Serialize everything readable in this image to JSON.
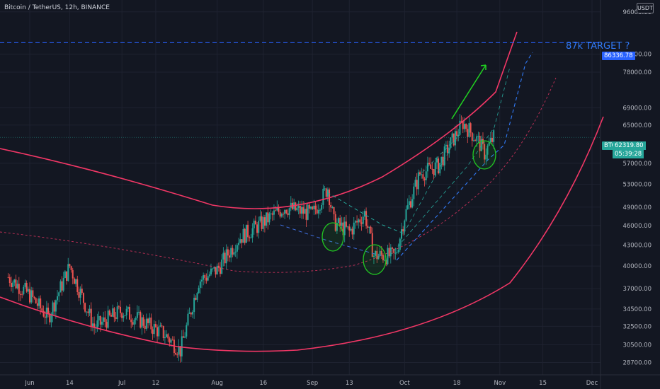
{
  "header": {
    "title": "Bitcoin / TetherUS, 12h, BINANCE",
    "currency_badge": "USDT"
  },
  "annotations": {
    "target_text": "87k TARGET ?",
    "target_price_label": "86336.78",
    "symbol_badge": "BTCUSDT",
    "current_price_label": "62319.80",
    "countdown_label": "05:39:28"
  },
  "colors": {
    "background": "#131722",
    "up_candle": "#26a69a",
    "down_candle": "#ef5350",
    "curve": "#f23766",
    "target_line": "#2962ff",
    "arrow": "#21d321",
    "circles": "#22c822"
  },
  "chart_data": {
    "type": "candlestick",
    "title": "Bitcoin / TetherUS, 12h, BINANCE",
    "y_scale": "log",
    "ylim": [
      27500,
      100000
    ],
    "y_ticks": [
      {
        "value": 96000,
        "label": "96000.00"
      },
      {
        "value": 83000,
        "label": "83000.00"
      },
      {
        "value": 78000,
        "label": "78000.00"
      },
      {
        "value": 69000,
        "label": "69000.00"
      },
      {
        "value": 65000,
        "label": "65000.00"
      },
      {
        "value": 57000,
        "label": "57000.00"
      },
      {
        "value": 53000,
        "label": "53000.00"
      },
      {
        "value": 49000,
        "label": "49000.00"
      },
      {
        "value": 46000,
        "label": "46000.00"
      },
      {
        "value": 43000,
        "label": "43000.00"
      },
      {
        "value": 40000,
        "label": "40000.00"
      },
      {
        "value": 37000,
        "label": "37000.00"
      },
      {
        "value": 34500,
        "label": "34500.00"
      },
      {
        "value": 32500,
        "label": "32500.00"
      },
      {
        "value": 30500,
        "label": "30500.00"
      },
      {
        "value": 28700,
        "label": "28700.00"
      }
    ],
    "x_ticks": [
      {
        "date": "2021-06-01",
        "label": "Jun"
      },
      {
        "date": "2021-06-14",
        "label": "14"
      },
      {
        "date": "2021-07-01",
        "label": "Jul"
      },
      {
        "date": "2021-07-12",
        "label": "12"
      },
      {
        "date": "2021-08-01",
        "label": "Aug"
      },
      {
        "date": "2021-08-16",
        "label": "16"
      },
      {
        "date": "2021-09-01",
        "label": "Sep"
      },
      {
        "date": "2021-09-13",
        "label": "13"
      },
      {
        "date": "2021-10-01",
        "label": "Oct"
      },
      {
        "date": "2021-10-18",
        "label": "18"
      },
      {
        "date": "2021-11-01",
        "label": "Nov"
      },
      {
        "date": "2021-11-15",
        "label": "15"
      },
      {
        "date": "2021-12-01",
        "label": "Dec"
      }
    ],
    "target_price": 86336.78,
    "current_price": 62319.8,
    "close_points": [
      {
        "date": "2021-05-25",
        "close": 38500
      },
      {
        "date": "2021-06-01",
        "close": 36200
      },
      {
        "date": "2021-06-07",
        "close": 33500
      },
      {
        "date": "2021-06-14",
        "close": 40000
      },
      {
        "date": "2021-06-22",
        "close": 32400
      },
      {
        "date": "2021-07-01",
        "close": 34300
      },
      {
        "date": "2021-07-08",
        "close": 33000
      },
      {
        "date": "2021-07-15",
        "close": 31600
      },
      {
        "date": "2021-07-20",
        "close": 29900
      },
      {
        "date": "2021-07-26",
        "close": 38000
      },
      {
        "date": "2021-08-01",
        "close": 39500
      },
      {
        "date": "2021-08-08",
        "close": 44000
      },
      {
        "date": "2021-08-16",
        "close": 46500
      },
      {
        "date": "2021-08-23",
        "close": 49000
      },
      {
        "date": "2021-09-01",
        "close": 47800
      },
      {
        "date": "2021-09-06",
        "close": 52400
      },
      {
        "date": "2021-09-08",
        "close": 46500
      },
      {
        "date": "2021-09-13",
        "close": 45000
      },
      {
        "date": "2021-09-18",
        "close": 48000
      },
      {
        "date": "2021-09-21",
        "close": 41500
      },
      {
        "date": "2021-09-28",
        "close": 41400
      },
      {
        "date": "2021-10-01",
        "close": 47500
      },
      {
        "date": "2021-10-06",
        "close": 55000
      },
      {
        "date": "2021-10-12",
        "close": 56500
      },
      {
        "date": "2021-10-16",
        "close": 61000
      },
      {
        "date": "2021-10-20",
        "close": 65500
      },
      {
        "date": "2021-10-25",
        "close": 61500
      },
      {
        "date": "2021-10-27",
        "close": 59000
      },
      {
        "date": "2021-10-30",
        "close": 62319.8
      }
    ]
  }
}
